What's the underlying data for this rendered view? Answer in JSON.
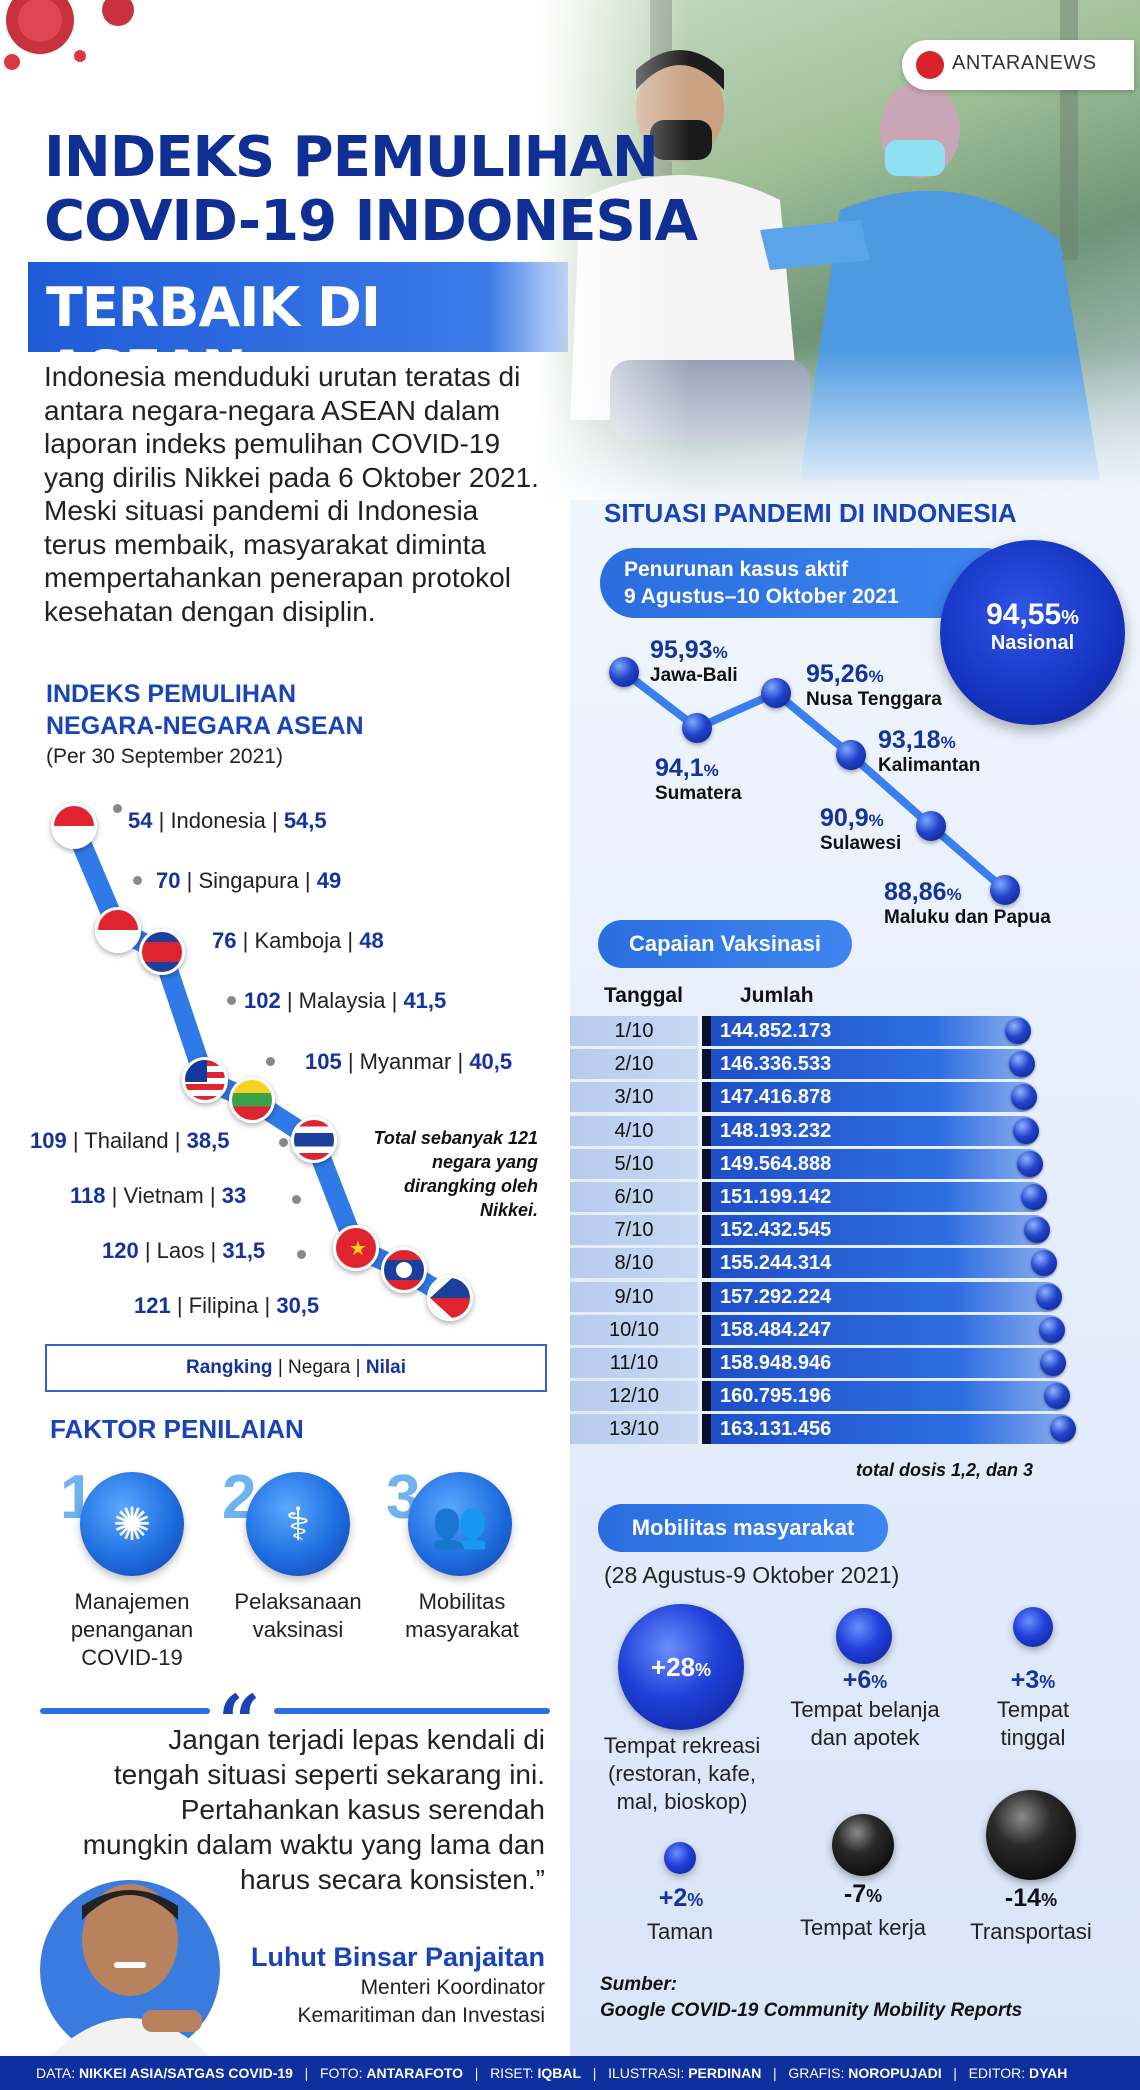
{
  "logo": {
    "text": "ANTARANEWS"
  },
  "title": {
    "line1": "INDEKS PEMULIHAN",
    "line2": "COVID-19 INDONESIA",
    "banner": "TERBAIK DI ASEAN"
  },
  "intro": "Indonesia menduduki urutan teratas di antara negara-negara ASEAN dalam laporan indeks pemulihan COVID-19 yang dirilis Nikkei pada 6 Oktober 2021. Meski situasi pandemi di Indonesia terus membaik, masyarakat diminta mempertahankan penerapan protokol kesehatan dengan disiplin.",
  "ranking": {
    "heading1": "INDEKS PEMULIHAN",
    "heading2": "NEGARA-NEGARA ASEAN",
    "subheading": "(Per 30 September 2021)",
    "items": [
      {
        "rank": "54",
        "country": "Indonesia",
        "score": "54,5"
      },
      {
        "rank": "70",
        "country": "Singapura",
        "score": "49"
      },
      {
        "rank": "76",
        "country": "Kamboja",
        "score": "48"
      },
      {
        "rank": "102",
        "country": "Malaysia",
        "score": "41,5"
      },
      {
        "rank": "105",
        "country": "Myanmar",
        "score": "40,5"
      },
      {
        "rank": "109",
        "country": "Thailand",
        "score": "38,5"
      },
      {
        "rank": "118",
        "country": "Vietnam",
        "score": "33"
      },
      {
        "rank": "120",
        "country": "Laos",
        "score": "31,5"
      },
      {
        "rank": "121",
        "country": "Filipina",
        "score": "30,5"
      }
    ],
    "note": "Total sebanyak 121 negara yang dirangking oleh Nikkei.",
    "legend": {
      "rank": "Rangking",
      "country": "Negara",
      "score": "Nilai",
      "sep": "|"
    }
  },
  "factors": {
    "heading": "FAKTOR PENILAIAN",
    "items": [
      {
        "num": "1",
        "label": "Manajemen penanganan COVID-19",
        "icon": "virus-icon"
      },
      {
        "num": "2",
        "label": "Pelaksanaan vaksinasi",
        "icon": "vaccine-icon"
      },
      {
        "num": "3",
        "label": "Mobilitas masyarakat",
        "icon": "people-icon"
      }
    ]
  },
  "quote": {
    "mark": "“",
    "text": "Jangan terjadi lepas kendali di tengah situasi seperti sekarang ini. Pertahankan kasus serendah mungkin dalam waktu yang lama dan harus secara konsisten.”",
    "author": "Luhut Binsar Panjaitan",
    "role1": "Menteri Koordinator",
    "role2": "Kemaritiman dan Investasi"
  },
  "situasi": {
    "heading": "SITUASI PANDEMI DI INDONESIA",
    "pill_line1": "Penurunan kasus aktif",
    "pill_line2": "9 Agustus–10 Oktober 2021",
    "nasional_value": "94,55",
    "nasional_label": "Nasional",
    "percent": "%",
    "regions": [
      {
        "value": "95,93",
        "name": "Jawa-Bali"
      },
      {
        "value": "94,1",
        "name": "Sumatera"
      },
      {
        "value": "95,26",
        "name": "Nusa Tenggara"
      },
      {
        "value": "93,18",
        "name": "Kalimantan"
      },
      {
        "value": "90,9",
        "name": "Sulawesi"
      },
      {
        "value": "88,86",
        "name": "Maluku dan Papua"
      }
    ]
  },
  "vaksinasi": {
    "pill": "Capaian Vaksinasi",
    "col_date": "Tanggal",
    "col_value": "Jumlah",
    "rows": [
      {
        "date": "1/10",
        "value": "144.852.173",
        "n": 144852173
      },
      {
        "date": "2/10",
        "value": "146.336.533",
        "n": 146336533
      },
      {
        "date": "3/10",
        "value": "147.416.878",
        "n": 147416878
      },
      {
        "date": "4/10",
        "value": "148.193.232",
        "n": 148193232
      },
      {
        "date": "5/10",
        "value": "149.564.888",
        "n": 149564888
      },
      {
        "date": "6/10",
        "value": "151.199.142",
        "n": 151199142
      },
      {
        "date": "7/10",
        "value": "152.432.545",
        "n": 152432545
      },
      {
        "date": "8/10",
        "value": "155.244.314",
        "n": 155244314
      },
      {
        "date": "9/10",
        "value": "157.292.224",
        "n": 157292224
      },
      {
        "date": "10/10",
        "value": "158.484.247",
        "n": 158484247
      },
      {
        "date": "11/10",
        "value": "158.948.946",
        "n": 158948946
      },
      {
        "date": "12/10",
        "value": "160.795.196",
        "n": 160795196
      },
      {
        "date": "13/10",
        "value": "163.131.456",
        "n": 163131456
      }
    ],
    "note": "total dosis 1,2, dan 3"
  },
  "mobilitas": {
    "pill": "Mobilitas masyarakat",
    "period": "(28 Agustus-9 Oktober 2021)",
    "items": [
      {
        "value": "+28",
        "label": "Tempat rekreasi (restoran, kafe, mal, bioskop)"
      },
      {
        "value": "+6",
        "label": "Tempat belanja dan apotek"
      },
      {
        "value": "+3",
        "label": "Tempat tinggal"
      },
      {
        "value": "+2",
        "label": "Taman"
      },
      {
        "value": "-7",
        "label": "Tempat kerja"
      },
      {
        "value": "-14",
        "label": "Transportasi"
      }
    ],
    "percent": "%"
  },
  "source": {
    "label": "Sumber:",
    "text": "Google COVID-19 Community Mobility Reports"
  },
  "footer": {
    "data_label": "DATA:",
    "data": "NIKKEI ASIA/SATGAS COVID-19",
    "foto_label": "FOTO:",
    "foto": "ANTARAFOTO",
    "riset_label": "RISET:",
    "riset": "IQBAL",
    "ilustrasi_label": "ILUSTRASI:",
    "ilustrasi": "PERDINAN",
    "grafis_label": "GRAFIS:",
    "grafis": "NOROPUJADI",
    "editor_label": "EDITOR:",
    "editor": "DYAH",
    "sep": "|"
  },
  "colors": {
    "navy": "#14339c",
    "blue": "#1e5bd8",
    "footer": "#0e2f9e"
  }
}
